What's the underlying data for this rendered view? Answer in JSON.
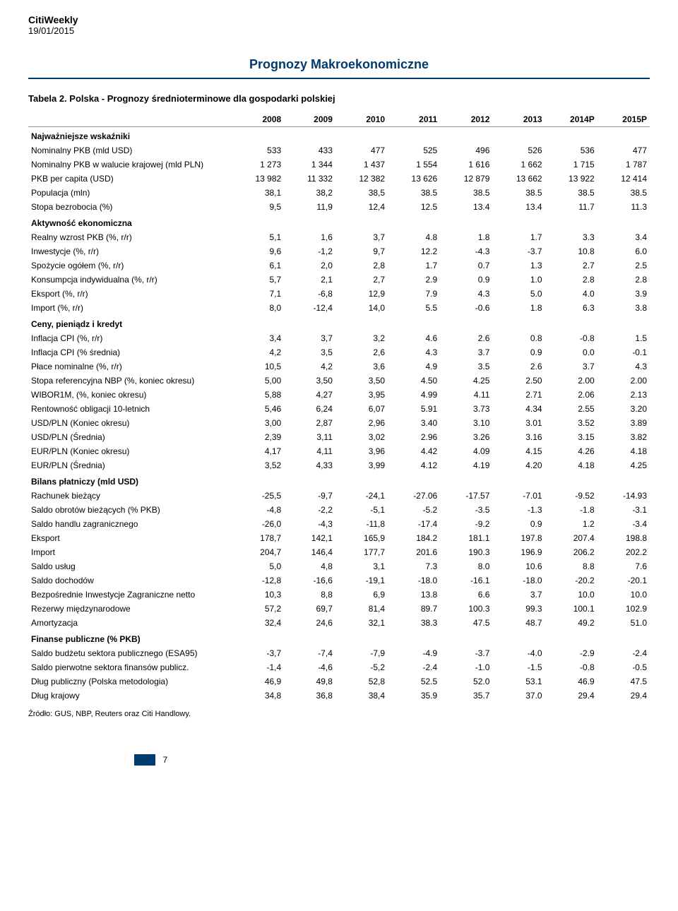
{
  "header": {
    "brand": "CitiWeekly",
    "date": "19/01/2015"
  },
  "title": "Prognozy Makroekonomiczne",
  "caption": "Tabela 2. Polska - Prognozy średnioterminowe dla gospodarki polskiej",
  "columns": [
    "",
    "2008",
    "2009",
    "2010",
    "2011",
    "2012",
    "2013",
    "2014P",
    "2015P"
  ],
  "rows": [
    {
      "type": "section",
      "cells": [
        "Najważniejsze wskaźniki",
        "",
        "",
        "",
        "",
        "",
        "",
        "",
        ""
      ]
    },
    {
      "type": "data",
      "cells": [
        "Nominalny PKB (mld USD)",
        "533",
        "433",
        "477",
        "525",
        "496",
        "526",
        "536",
        "477"
      ]
    },
    {
      "type": "data",
      "cells": [
        "Nominalny PKB w walucie krajowej (mld PLN)",
        "1 273",
        "1 344",
        "1 437",
        "1 554",
        "1 616",
        "1 662",
        "1 715",
        "1 787"
      ]
    },
    {
      "type": "data",
      "cells": [
        "PKB per capita (USD)",
        "13 982",
        "11 332",
        "12 382",
        "13 626",
        "12 879",
        "13 662",
        "13 922",
        "12 414"
      ]
    },
    {
      "type": "data",
      "cells": [
        "Populacja (mln)",
        "38,1",
        "38,2",
        "38,5",
        "38.5",
        "38.5",
        "38.5",
        "38.5",
        "38.5"
      ]
    },
    {
      "type": "data",
      "cells": [
        "Stopa bezrobocia (%)",
        "9,5",
        "11,9",
        "12,4",
        "12.5",
        "13.4",
        "13.4",
        "11.7",
        "11.3"
      ]
    },
    {
      "type": "section",
      "cells": [
        "Aktywność ekonomiczna",
        "",
        "",
        "",
        "",
        "",
        "",
        "",
        ""
      ]
    },
    {
      "type": "data",
      "cells": [
        "Realny wzrost PKB (%, r/r)",
        "5,1",
        "1,6",
        "3,7",
        "4.8",
        "1.8",
        "1.7",
        "3.3",
        "3.4"
      ]
    },
    {
      "type": "data",
      "cells": [
        "Inwestycje (%, r/r)",
        "9,6",
        "-1,2",
        "9,7",
        "12.2",
        "-4.3",
        "-3.7",
        "10.8",
        "6.0"
      ]
    },
    {
      "type": "data",
      "cells": [
        "Spożycie ogółem (%, r/r)",
        "6,1",
        "2,0",
        "2,8",
        "1.7",
        "0.7",
        "1.3",
        "2.7",
        "2.5"
      ]
    },
    {
      "type": "data",
      "cells": [
        "Konsumpcja indywidualna (%, r/r)",
        "5,7",
        "2,1",
        "2,7",
        "2.9",
        "0.9",
        "1.0",
        "2.8",
        "2.8"
      ]
    },
    {
      "type": "data",
      "cells": [
        "Eksport (%, r/r)",
        "7,1",
        "-6,8",
        "12,9",
        "7.9",
        "4.3",
        "5.0",
        "4.0",
        "3.9"
      ]
    },
    {
      "type": "data",
      "cells": [
        "Import (%, r/r)",
        "8,0",
        "-12,4",
        "14,0",
        "5.5",
        "-0.6",
        "1.8",
        "6.3",
        "3.8"
      ]
    },
    {
      "type": "section",
      "cells": [
        "Ceny, pieniądz i kredyt",
        "",
        "",
        "",
        "",
        "",
        "",
        "",
        ""
      ]
    },
    {
      "type": "data",
      "cells": [
        "Inflacja CPI (%, r/r)",
        "3,4",
        "3,7",
        "3,2",
        "4.6",
        "2.6",
        "0.8",
        "-0.8",
        "1.5"
      ]
    },
    {
      "type": "data",
      "cells": [
        "Inflacja CPI (% średnia)",
        "4,2",
        "3,5",
        "2,6",
        "4.3",
        "3.7",
        "0.9",
        "0.0",
        "-0.1"
      ]
    },
    {
      "type": "data",
      "cells": [
        "Płace nominalne (%, r/r)",
        "10,5",
        "4,2",
        "3,6",
        "4.9",
        "3.5",
        "2.6",
        "3.7",
        "4.3"
      ]
    },
    {
      "type": "data",
      "cells": [
        "Stopa referencyjna NBP (%, koniec okresu)",
        "5,00",
        "3,50",
        "3,50",
        "4.50",
        "4.25",
        "2.50",
        "2.00",
        "2.00"
      ]
    },
    {
      "type": "data",
      "cells": [
        "WIBOR1M, (%, koniec okresu)",
        "5,88",
        "4,27",
        "3,95",
        "4.99",
        "4.11",
        "2.71",
        "2.06",
        "2.13"
      ]
    },
    {
      "type": "data",
      "cells": [
        "Rentowność obligacji 10-letnich",
        "5,46",
        "6,24",
        "6,07",
        "5.91",
        "3.73",
        "4.34",
        "2.55",
        "3.20"
      ]
    },
    {
      "type": "data",
      "cells": [
        "USD/PLN (Koniec okresu)",
        "3,00",
        "2,87",
        "2,96",
        "3.40",
        "3.10",
        "3.01",
        "3.52",
        "3.89"
      ]
    },
    {
      "type": "data",
      "cells": [
        "USD/PLN (Średnia)",
        "2,39",
        "3,11",
        "3,02",
        "2.96",
        "3.26",
        "3.16",
        "3.15",
        "3.82"
      ]
    },
    {
      "type": "data",
      "cells": [
        "EUR/PLN (Koniec okresu)",
        "4,17",
        "4,11",
        "3,96",
        "4.42",
        "4.09",
        "4.15",
        "4.26",
        "4.18"
      ]
    },
    {
      "type": "data",
      "cells": [
        "EUR/PLN (Średnia)",
        "3,52",
        "4,33",
        "3,99",
        "4.12",
        "4.19",
        "4.20",
        "4.18",
        "4.25"
      ]
    },
    {
      "type": "section",
      "cells": [
        "Bilans płatniczy (mld USD)",
        "",
        "",
        "",
        "",
        "",
        "",
        "",
        ""
      ]
    },
    {
      "type": "data",
      "cells": [
        "Rachunek bieżący",
        "-25,5",
        "-9,7",
        "-24,1",
        "-27.06",
        "-17.57",
        "-7.01",
        "-9.52",
        "-14.93"
      ]
    },
    {
      "type": "data",
      "cells": [
        "Saldo obrotów bieżących (% PKB)",
        "-4,8",
        "-2,2",
        "-5,1",
        "-5.2",
        "-3.5",
        "-1.3",
        "-1.8",
        "-3.1"
      ]
    },
    {
      "type": "data",
      "cells": [
        "Saldo handlu zagranicznego",
        "-26,0",
        "-4,3",
        "-11,8",
        "-17.4",
        "-9.2",
        "0.9",
        "1.2",
        "-3.4"
      ]
    },
    {
      "type": "data",
      "cells": [
        "Eksport",
        "178,7",
        "142,1",
        "165,9",
        "184.2",
        "181.1",
        "197.8",
        "207.4",
        "198.8"
      ]
    },
    {
      "type": "data",
      "cells": [
        "Import",
        "204,7",
        "146,4",
        "177,7",
        "201.6",
        "190.3",
        "196.9",
        "206.2",
        "202.2"
      ]
    },
    {
      "type": "data",
      "cells": [
        "Saldo usług",
        "5,0",
        "4,8",
        "3,1",
        "7.3",
        "8.0",
        "10.6",
        "8.8",
        "7.6"
      ]
    },
    {
      "type": "data",
      "cells": [
        "Saldo dochodów",
        "-12,8",
        "-16,6",
        "-19,1",
        "-18.0",
        "-16.1",
        "-18.0",
        "-20.2",
        "-20.1"
      ]
    },
    {
      "type": "data",
      "cells": [
        "Bezpośrednie Inwestycje Zagraniczne netto",
        "10,3",
        "8,8",
        "6,9",
        "13.8",
        "6.6",
        "3.7",
        "10.0",
        "10.0"
      ]
    },
    {
      "type": "data",
      "cells": [
        "Rezerwy międzynarodowe",
        "57,2",
        "69,7",
        "81,4",
        "89.7",
        "100.3",
        "99.3",
        "100.1",
        "102.9"
      ]
    },
    {
      "type": "data",
      "cells": [
        "Amortyzacja",
        "32,4",
        "24,6",
        "32,1",
        "38.3",
        "47.5",
        "48.7",
        "49.2",
        "51.0"
      ]
    },
    {
      "type": "section",
      "cells": [
        "Finanse publiczne (% PKB)",
        "",
        "",
        "",
        "",
        "",
        "",
        "",
        ""
      ]
    },
    {
      "type": "data",
      "cells": [
        "Saldo budżetu sektora publicznego (ESA95)",
        "-3,7",
        "-7,4",
        "-7,9",
        "-4.9",
        "-3.7",
        "-4.0",
        "-2.9",
        "-2.4"
      ]
    },
    {
      "type": "data",
      "cells": [
        "Saldo pierwotne sektora finansów publicz.",
        "-1,4",
        "-4,6",
        "-5,2",
        "-2.4",
        "-1.0",
        "-1.5",
        "-0.8",
        "-0.5"
      ]
    },
    {
      "type": "data",
      "cells": [
        "Dług publiczny (Polska metodologia)",
        "46,9",
        "49,8",
        "52,8",
        "52.5",
        "52.0",
        "53.1",
        "46.9",
        "47.5"
      ]
    },
    {
      "type": "data",
      "cells": [
        "Dług krajowy",
        "34,8",
        "36,8",
        "38,4",
        "35.9",
        "35.7",
        "37.0",
        "29.4",
        "29.4"
      ]
    }
  ],
  "source": "Źródło: GUS, NBP, Reuters oraz Citi Handlowy.",
  "page_number": "7",
  "colors": {
    "accent": "#003b70",
    "text": "#000000",
    "rule": "#999999"
  }
}
